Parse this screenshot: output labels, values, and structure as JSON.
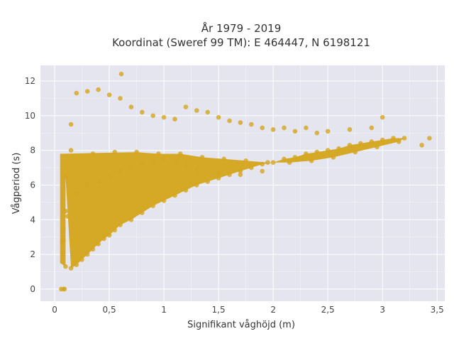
{
  "chart_data": {
    "type": "scatter",
    "title": "År 1979 - 2019",
    "subtitle": "Koordinat (Sweref 99 TM): E 464447, N 6198121",
    "xlabel": "Signifikant våghöjd (m)",
    "ylabel": "Vågperiod (s)",
    "xlim": [
      -0.13,
      3.57
    ],
    "ylim": [
      -0.7,
      12.9
    ],
    "x_ticks": [
      0,
      0.5,
      1,
      1.5,
      2,
      2.5,
      3,
      3.5
    ],
    "x_tick_labels": [
      "0",
      "0,5",
      "1",
      "1,5",
      "2",
      "2,5",
      "3",
      "3,5"
    ],
    "y_ticks": [
      0,
      2,
      4,
      6,
      8,
      10,
      12
    ],
    "y_tick_labels": [
      "0",
      "2",
      "4",
      "6",
      "8",
      "10",
      "12"
    ],
    "grid": true,
    "legend": "none",
    "marker_color": "#d4a51f",
    "background_color": "#e5e5ef",
    "series": [
      {
        "x": [
          0.06,
          0.08,
          0.09,
          0.1,
          0.08,
          0.12,
          0.15,
          0.1,
          0.2,
          0.25,
          0.3,
          0.35,
          0.4,
          0.45,
          0.5,
          0.55,
          0.6,
          0.7,
          0.8,
          0.9,
          1.0,
          1.1,
          1.2,
          1.3,
          1.4,
          1.5,
          1.6,
          1.7,
          1.8,
          1.9,
          2.0,
          2.1,
          2.2,
          2.3,
          2.4,
          2.5,
          2.6,
          2.7,
          2.8,
          2.9,
          3.0,
          3.1,
          3.2,
          3.36,
          3.43,
          0.15,
          0.2,
          0.3,
          0.4,
          0.5,
          0.6,
          0.7,
          0.8,
          0.9,
          1.0,
          1.1,
          1.2,
          1.3,
          1.4,
          1.5,
          1.6,
          1.7,
          1.8,
          1.9,
          2.0,
          2.1,
          2.2,
          2.3,
          2.4,
          2.5,
          2.7,
          2.9,
          3.0,
          0.2,
          0.3,
          0.4,
          0.5,
          0.6,
          0.7,
          0.8,
          0.9,
          1.0,
          1.1,
          1.2,
          1.3,
          1.5,
          1.7,
          1.9,
          0.07,
          0.08,
          0.1,
          0.61,
          0.15,
          0.35,
          0.55,
          0.75,
          0.95,
          1.15,
          1.35,
          1.55,
          1.75,
          1.95,
          2.15,
          2.35,
          2.55,
          2.75,
          2.95,
          3.15
        ],
        "y": [
          0.0,
          0.0,
          0.0,
          1.3,
          2.8,
          4.2,
          1.2,
          6.5,
          1.4,
          1.7,
          2.0,
          2.3,
          2.6,
          2.9,
          3.1,
          3.4,
          3.7,
          4.0,
          4.4,
          4.8,
          5.1,
          5.4,
          5.7,
          6.0,
          6.2,
          6.4,
          6.6,
          6.8,
          7.0,
          7.2,
          7.3,
          7.5,
          7.6,
          7.8,
          7.9,
          8.0,
          8.1,
          8.3,
          8.4,
          8.5,
          8.6,
          8.7,
          8.7,
          8.3,
          8.7,
          9.5,
          11.3,
          11.4,
          11.5,
          11.2,
          11.0,
          10.5,
          10.2,
          10.0,
          9.9,
          9.8,
          10.5,
          10.3,
          10.2,
          9.9,
          9.7,
          9.6,
          9.5,
          9.3,
          9.2,
          9.3,
          9.1,
          9.3,
          9.0,
          9.1,
          9.2,
          9.3,
          9.9,
          5.5,
          6.0,
          6.2,
          6.5,
          6.8,
          7.0,
          7.2,
          7.4,
          7.5,
          7.3,
          7.1,
          6.9,
          6.7,
          6.6,
          6.8,
          2.7,
          3.5,
          4.5,
          12.4,
          8.0,
          7.8,
          7.9,
          7.9,
          7.8,
          7.8,
          7.6,
          7.5,
          7.4,
          7.3,
          7.3,
          7.4,
          7.6,
          7.9,
          8.2,
          8.5
        ]
      }
    ]
  }
}
